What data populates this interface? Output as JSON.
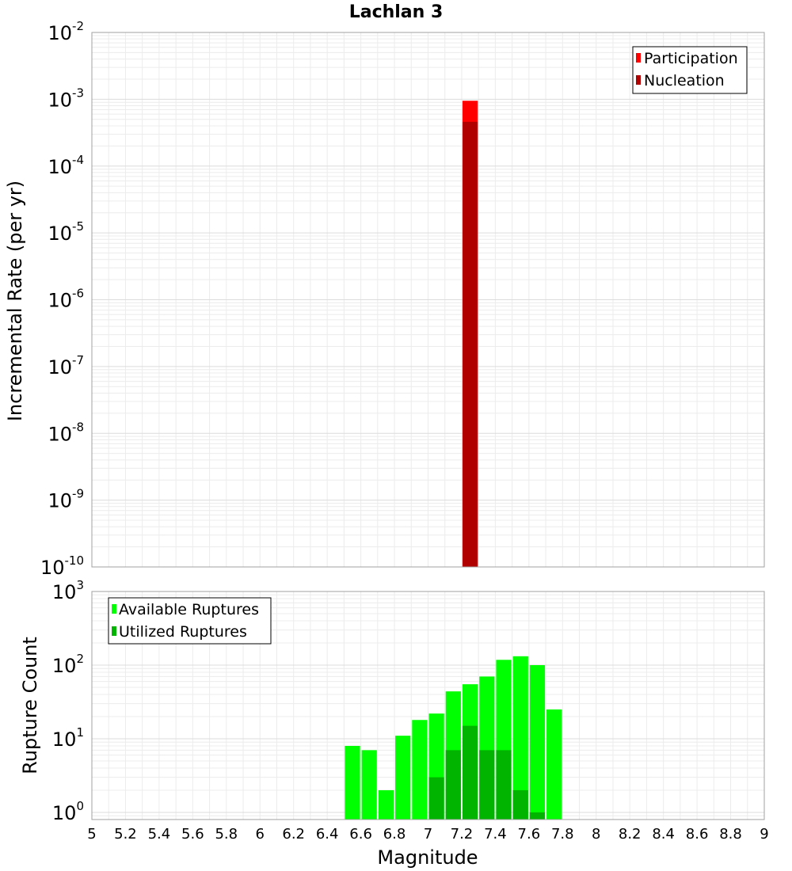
{
  "chart_data": [
    {
      "type": "bar",
      "title": "Lachlan 3",
      "xlabel": "",
      "ylabel": "Incremental Rate (per yr)",
      "xlim": [
        5,
        9
      ],
      "ylim": [
        1e-10,
        0.01
      ],
      "yscale": "log",
      "grid": true,
      "legend_position": "top-right",
      "bin_width": 0.1,
      "series": [
        {
          "name": "Participation",
          "color": "#ff0000",
          "bars": [
            {
              "x": 7.25,
              "y": 0.00095
            }
          ]
        },
        {
          "name": "Nucleation",
          "color": "#b00000",
          "bars": [
            {
              "x": 7.25,
              "y": 0.00046
            }
          ]
        }
      ],
      "y_ticks": [
        {
          "base": "10",
          "exp": "-10"
        },
        {
          "base": "10",
          "exp": "-9"
        },
        {
          "base": "10",
          "exp": "-8"
        },
        {
          "base": "10",
          "exp": "-7"
        },
        {
          "base": "10",
          "exp": "-6"
        },
        {
          "base": "10",
          "exp": "-5"
        },
        {
          "base": "10",
          "exp": "-4"
        },
        {
          "base": "10",
          "exp": "-3"
        },
        {
          "base": "10",
          "exp": "-2"
        }
      ]
    },
    {
      "type": "bar",
      "title": "",
      "xlabel": "Magnitude",
      "ylabel": "Rupture Count",
      "xlim": [
        5,
        9
      ],
      "ylim": [
        0.8,
        1000
      ],
      "yscale": "log",
      "grid": true,
      "legend_position": "top-left",
      "bin_width": 0.1,
      "series": [
        {
          "name": "Available Ruptures",
          "color": "#00ff00",
          "bars": [
            {
              "x": 6.55,
              "y": 8
            },
            {
              "x": 6.65,
              "y": 7
            },
            {
              "x": 6.75,
              "y": 2
            },
            {
              "x": 6.85,
              "y": 11
            },
            {
              "x": 6.95,
              "y": 18
            },
            {
              "x": 7.05,
              "y": 22
            },
            {
              "x": 7.15,
              "y": 44
            },
            {
              "x": 7.25,
              "y": 55
            },
            {
              "x": 7.35,
              "y": 70
            },
            {
              "x": 7.45,
              "y": 118
            },
            {
              "x": 7.55,
              "y": 132
            },
            {
              "x": 7.65,
              "y": 100
            },
            {
              "x": 7.75,
              "y": 25
            }
          ]
        },
        {
          "name": "Utilized Ruptures",
          "color": "#00b400",
          "bars": [
            {
              "x": 7.05,
              "y": 3
            },
            {
              "x": 7.15,
              "y": 7
            },
            {
              "x": 7.25,
              "y": 15
            },
            {
              "x": 7.35,
              "y": 7
            },
            {
              "x": 7.45,
              "y": 7
            },
            {
              "x": 7.55,
              "y": 2
            },
            {
              "x": 7.65,
              "y": 1
            }
          ]
        }
      ],
      "y_ticks": [
        {
          "base": "10",
          "exp": "0"
        },
        {
          "base": "10",
          "exp": "1"
        },
        {
          "base": "10",
          "exp": "2"
        },
        {
          "base": "10",
          "exp": "3"
        }
      ],
      "x_ticks": [
        "5",
        "5.2",
        "5.4",
        "5.6",
        "5.8",
        "6",
        "6.2",
        "6.4",
        "6.6",
        "6.8",
        "7",
        "7.2",
        "7.4",
        "7.6",
        "7.8",
        "8",
        "8.2",
        "8.4",
        "8.6",
        "8.8",
        "9"
      ]
    }
  ]
}
